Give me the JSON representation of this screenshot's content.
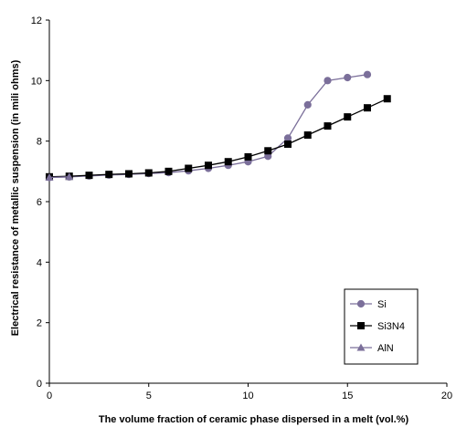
{
  "chart_data": {
    "type": "line",
    "xlabel": "The volume fraction of ceramic phase dispersed in a melt (vol.%)",
    "ylabel": "Electrical resistance of metallic suspension (in mili ohms)",
    "xlim": [
      0,
      20
    ],
    "ylim": [
      0,
      12
    ],
    "x_ticks": [
      "0",
      "5",
      "10",
      "15",
      "20"
    ],
    "y_ticks": [
      "0",
      "2",
      "4",
      "6",
      "8",
      "10",
      "12"
    ],
    "grid": false,
    "legend_position": "bottom-right",
    "series": [
      {
        "name": "Si",
        "marker": "circle",
        "color": "#7b6f9a",
        "x": [
          0,
          1,
          2,
          3,
          4,
          5,
          6,
          7,
          8,
          9,
          10,
          11,
          12,
          13,
          14,
          15,
          16
        ],
        "y": [
          6.8,
          6.82,
          6.85,
          6.88,
          6.9,
          6.93,
          6.96,
          7.02,
          7.1,
          7.2,
          7.32,
          7.5,
          8.1,
          9.2,
          10.0,
          10.1,
          10.2
        ]
      },
      {
        "name": "Si3N4",
        "marker": "square",
        "color": "#000000",
        "x": [
          0,
          1,
          2,
          3,
          4,
          5,
          6,
          7,
          8,
          9,
          10,
          11,
          12,
          13,
          14,
          15,
          16,
          17
        ],
        "y": [
          6.82,
          6.84,
          6.87,
          6.9,
          6.92,
          6.95,
          7.0,
          7.1,
          7.2,
          7.32,
          7.48,
          7.68,
          7.9,
          8.2,
          8.5,
          8.8,
          9.1,
          9.4
        ]
      },
      {
        "name": "AlN",
        "marker": "triangle",
        "color": "#7b6f9a",
        "x": [
          0,
          1
        ],
        "y": [
          6.8,
          6.82
        ]
      }
    ]
  }
}
